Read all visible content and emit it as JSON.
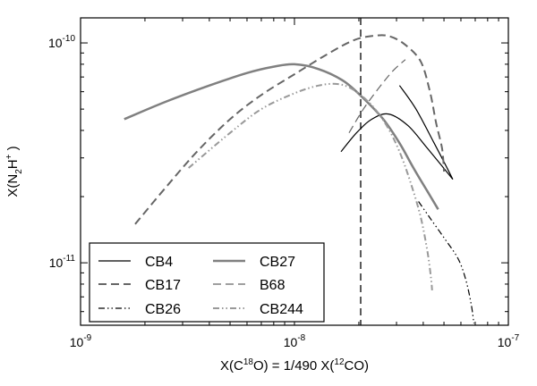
{
  "chart_data": {
    "type": "line",
    "title": "",
    "xscale": "log",
    "yscale": "log",
    "xlim": [
      1e-09,
      1e-07
    ],
    "ylim": [
      5.2e-12,
      1.3e-10
    ],
    "xlabel": "X(C18O) = 1/490 X(12CO)",
    "xlabel_parts": {
      "a": "X(C",
      "a_sup": "18",
      "b": "O)  =  1/490 X(",
      "b_sup": "12",
      "c": "CO)"
    },
    "ylabel": "X(N2H+)",
    "ylabel_parts": {
      "a": "X(N",
      "a_sub": "2",
      "b": "H",
      "b_sup": "+",
      "c": " )"
    },
    "x_ticks": [
      {
        "value": 1e-09,
        "base": "10",
        "exp": "-9"
      },
      {
        "value": 1e-08,
        "base": "10",
        "exp": "-8"
      },
      {
        "value": 1e-07,
        "base": "10",
        "exp": "-7"
      }
    ],
    "y_ticks": [
      {
        "value": 1e-11,
        "base": "10",
        "exp": "-11"
      },
      {
        "value": 1e-10,
        "base": "10",
        "exp": "-10"
      }
    ],
    "vline": {
      "x": 2.04e-08
    },
    "legend_position": "bottom-left",
    "series": [
      {
        "name": "CB4",
        "color": "#000000",
        "dash": "solid",
        "width": 1.2,
        "segments": [
          [
            [
              1.65e-08,
              3.2e-11
            ],
            [
              1.95e-08,
              3.9e-11
            ],
            [
              2.3e-08,
              4.5e-11
            ],
            [
              2.75e-08,
              4.75e-11
            ],
            [
              3.4e-08,
              4.2e-11
            ],
            [
              4.2e-08,
              3.3e-11
            ],
            [
              5.5e-08,
              2.4e-11
            ]
          ],
          [
            [
              3.1e-08,
              6.4e-11
            ],
            [
              3.7e-08,
              5e-11
            ],
            [
              4.5e-08,
              3.5e-11
            ],
            [
              5.5e-08,
              2.4e-11
            ]
          ]
        ]
      },
      {
        "name": "CB17",
        "color": "#666666",
        "dash": "dash",
        "width": 2,
        "segments": [
          [
            [
              1.8e-09,
              1.5e-11
            ],
            [
              2.5e-09,
              2.2e-11
            ],
            [
              3.5e-09,
              3.2e-11
            ],
            [
              5e-09,
              4.5e-11
            ],
            [
              7e-09,
              5.8e-11
            ],
            [
              1e-08,
              7.2e-11
            ],
            [
              1.4e-08,
              8.8e-11
            ],
            [
              1.9e-08,
              1.03e-10
            ],
            [
              2.4e-08,
              1.08e-10
            ],
            [
              2.8e-08,
              1.07e-10
            ],
            [
              3.3e-08,
              9.8e-11
            ],
            [
              3.9e-08,
              8.2e-11
            ],
            [
              4.3e-08,
              6e-11
            ],
            [
              4.6e-08,
              4.3e-11
            ],
            [
              4.9e-08,
              3.3e-11
            ],
            [
              5e-08,
              2.6e-11
            ]
          ]
        ]
      },
      {
        "name": "CB26",
        "color": "#000000",
        "dash": "dashdotdot",
        "width": 1.2,
        "segments": [
          [
            [
              3.8e-08,
              1.9e-11
            ],
            [
              4.3e-08,
              1.6e-11
            ],
            [
              5e-08,
              1.3e-11
            ],
            [
              5.8e-08,
              1.05e-11
            ],
            [
              6.3e-08,
              8.5e-12
            ],
            [
              6.7e-08,
              6.5e-12
            ],
            [
              6.9e-08,
              5.3e-12
            ]
          ]
        ]
      },
      {
        "name": "CB27",
        "color": "#808080",
        "dash": "solid",
        "width": 2.5,
        "segments": [
          [
            [
              1.6e-09,
              4.5e-11
            ],
            [
              2.5e-09,
              5.4e-11
            ],
            [
              4e-09,
              6.4e-11
            ],
            [
              6e-09,
              7.3e-11
            ],
            [
              8e-09,
              7.8e-11
            ],
            [
              1e-08,
              8e-11
            ],
            [
              1.3e-08,
              7.6e-11
            ],
            [
              1.7e-08,
              6.7e-11
            ],
            [
              2.1e-08,
              5.6e-11
            ],
            [
              2.6e-08,
              4.5e-11
            ],
            [
              3.1e-08,
              3.5e-11
            ],
            [
              3.6e-08,
              2.7e-11
            ],
            [
              4.2e-08,
              2.1e-11
            ],
            [
              4.7e-08,
              1.75e-11
            ]
          ]
        ]
      },
      {
        "name": "B68",
        "color": "#666666",
        "dash": "dash",
        "width": 1.2,
        "segments": [
          [
            [
              1.8e-08,
              3.9e-11
            ],
            [
              2.1e-08,
              5e-11
            ],
            [
              2.5e-08,
              6.3e-11
            ],
            [
              2.9e-08,
              7.5e-11
            ],
            [
              3.3e-08,
              8.4e-11
            ]
          ]
        ]
      },
      {
        "name": "CB244",
        "color": "#999999",
        "dash": "dashdotdot",
        "width": 2,
        "segments": [
          [
            [
              3.2e-09,
              2.7e-11
            ],
            [
              5e-09,
              3.9e-11
            ],
            [
              7e-09,
              5e-11
            ],
            [
              1e-08,
              5.9e-11
            ],
            [
              1.3e-08,
              6.4e-11
            ],
            [
              1.6e-08,
              6.5e-11
            ],
            [
              1.9e-08,
              6.1e-11
            ],
            [
              2.3e-08,
              5.2e-11
            ],
            [
              2.7e-08,
              4.2e-11
            ],
            [
              3.1e-08,
              3.2e-11
            ],
            [
              3.5e-08,
              2.3e-11
            ],
            [
              3.9e-08,
              1.6e-11
            ],
            [
              4.2e-08,
              1.1e-11
            ],
            [
              4.35e-08,
              8.5e-12
            ],
            [
              4.4e-08,
              7.5e-12
            ]
          ]
        ]
      }
    ]
  }
}
